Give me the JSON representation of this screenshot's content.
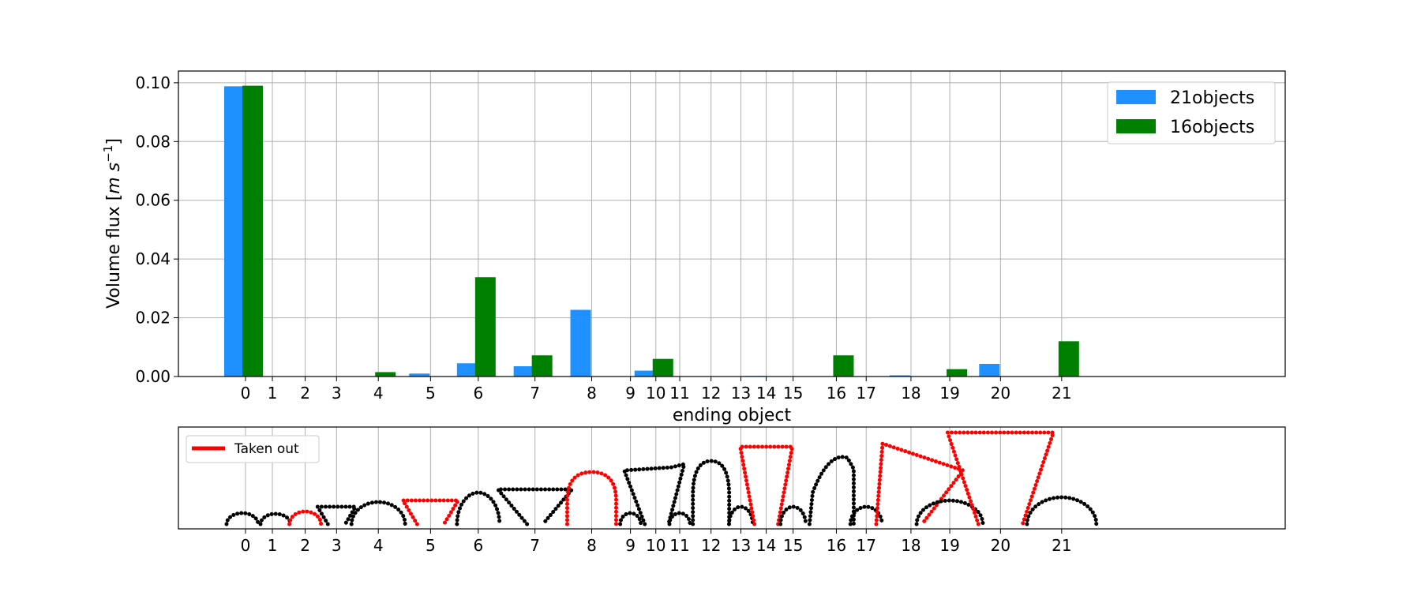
{
  "chart_data": [
    {
      "type": "bar",
      "categories": [
        "0",
        "1",
        "2",
        "3",
        "4",
        "5",
        "6",
        "7",
        "8",
        "9",
        "10",
        "11",
        "12",
        "13",
        "14",
        "15",
        "16",
        "17",
        "18",
        "19",
        "20",
        "21"
      ],
      "x": [
        0,
        1,
        2,
        3,
        4,
        5,
        6,
        7,
        8,
        9,
        10,
        11,
        12,
        13,
        14,
        15,
        16,
        17,
        18,
        19,
        20,
        21
      ],
      "category_positions": [
        0,
        0.9,
        2.0,
        3.05,
        4.45,
        6.2,
        7.8,
        9.7,
        11.6,
        12.9,
        13.75,
        14.55,
        15.6,
        16.6,
        17.45,
        18.35,
        19.8,
        20.8,
        22.3,
        23.6,
        25.3,
        27.35
      ],
      "series": [
        {
          "name": "21objects",
          "color": "#1e90ff",
          "values": [
            0.0988,
            0,
            0,
            0,
            0,
            0.001,
            0.0045,
            0.0035,
            0.0227,
            0,
            0.002,
            0,
            0,
            0,
            0.0002,
            0,
            0,
            0,
            0.0004,
            0,
            0.0043,
            0
          ]
        },
        {
          "name": "16objects",
          "color": "#008000",
          "values": [
            0.099,
            0,
            0,
            0,
            0.0015,
            0,
            0.0338,
            0.0072,
            0,
            0,
            0.006,
            0,
            0,
            0,
            0,
            0,
            0.0072,
            0,
            0,
            0.0025,
            0,
            0.012
          ]
        }
      ],
      "yticks": [
        "0.00",
        "0.02",
        "0.04",
        "0.06",
        "0.08",
        "0.10"
      ],
      "ylim": [
        0,
        0.104
      ],
      "xlabel": "ending object",
      "ylabel": "Volume flux [m s⁻¹]",
      "ylabel_parts": {
        "prefix": "Volume flux [",
        "m": "m",
        "s": "s",
        "exp": "−1",
        "suffix": "]"
      },
      "grid": true,
      "legend_position": "top-right"
    },
    {
      "type": "shape-strip",
      "categories": [
        "0",
        "1",
        "2",
        "3",
        "4",
        "5",
        "6",
        "7",
        "8",
        "9",
        "10",
        "11",
        "12",
        "13",
        "14",
        "15",
        "16",
        "17",
        "18",
        "19",
        "20",
        "21"
      ],
      "taken_out": [
        2,
        5,
        8,
        14,
        18,
        20
      ],
      "colors": {
        "taken_out": "#ff0000",
        "kept": "#000000"
      },
      "legend": {
        "label": "Taken out",
        "position": "top-left"
      },
      "grid": true
    }
  ]
}
